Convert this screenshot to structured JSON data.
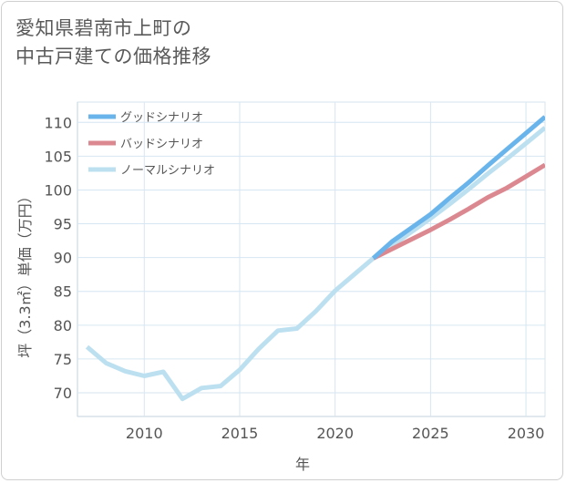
{
  "title": {
    "line1": "愛知県碧南市上町の",
    "line2": "中古戸建ての価格推移"
  },
  "chart_data": {
    "type": "line",
    "xlabel": "年",
    "ylabel": "坪（3.3㎡）単価（万円）",
    "xlim": [
      2006.5,
      2031
    ],
    "ylim": [
      66.5,
      113
    ],
    "xticks": [
      2010,
      2015,
      2020,
      2025,
      2030
    ],
    "yticks": [
      70,
      75,
      80,
      85,
      90,
      95,
      100,
      105,
      110
    ],
    "grid": true,
    "legend_position": "top-left",
    "series": [
      {
        "name": "グッドシナリオ",
        "color": "#6ab4ec",
        "x": [
          2022,
          2023,
          2024,
          2025,
          2026,
          2027,
          2028,
          2029,
          2030,
          2031
        ],
        "y": [
          89.9,
          92.4,
          94.4,
          96.4,
          98.8,
          101.1,
          103.6,
          106.0,
          108.4,
          110.8
        ]
      },
      {
        "name": "バッドシナリオ",
        "color": "#dc8890",
        "x": [
          2022,
          2023,
          2024,
          2025,
          2026,
          2027,
          2028,
          2029,
          2030,
          2031
        ],
        "y": [
          89.9,
          91.3,
          92.7,
          94.1,
          95.6,
          97.2,
          98.9,
          100.3,
          102.0,
          103.7
        ]
      },
      {
        "name": "ノーマルシナリオ",
        "color": "#bde0f0",
        "x": [
          2007,
          2008,
          2009,
          2010,
          2011,
          2012,
          2013,
          2014,
          2015,
          2016,
          2017,
          2018,
          2019,
          2020,
          2021,
          2022,
          2023,
          2024,
          2025,
          2026,
          2027,
          2028,
          2029,
          2030,
          2031
        ],
        "y": [
          76.8,
          74.4,
          73.2,
          72.5,
          73.1,
          69.1,
          70.7,
          71.0,
          73.4,
          76.5,
          79.2,
          79.5,
          82.1,
          85.1,
          87.5,
          89.9,
          91.8,
          93.8,
          95.8,
          97.9,
          100.1,
          102.4,
          104.6,
          106.9,
          109.2
        ]
      }
    ]
  }
}
